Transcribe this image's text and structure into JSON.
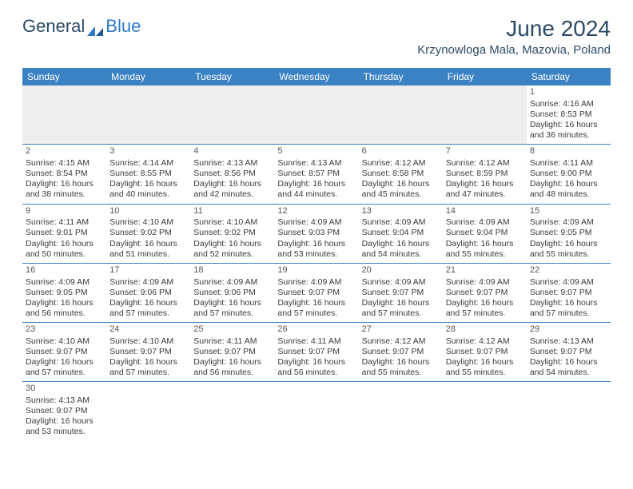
{
  "brand": {
    "part1": "General",
    "part2": "Blue"
  },
  "title": "June 2024",
  "location": "Krzynowloga Mala, Mazovia, Poland",
  "colors": {
    "header_bg": "#3b82c4",
    "header_text": "#ffffff",
    "cell_border": "#3b82c4",
    "brand_dark": "#2b4a66",
    "brand_blue": "#2f7ac4",
    "empty_bg": "#eeeeee"
  },
  "day_headers": [
    "Sunday",
    "Monday",
    "Tuesday",
    "Wednesday",
    "Thursday",
    "Friday",
    "Saturday"
  ],
  "weeks": [
    [
      null,
      null,
      null,
      null,
      null,
      null,
      {
        "n": "1",
        "sr": "4:16 AM",
        "ss": "8:53 PM",
        "dl": "16 hours and 36 minutes."
      }
    ],
    [
      {
        "n": "2",
        "sr": "4:15 AM",
        "ss": "8:54 PM",
        "dl": "16 hours and 38 minutes."
      },
      {
        "n": "3",
        "sr": "4:14 AM",
        "ss": "8:55 PM",
        "dl": "16 hours and 40 minutes."
      },
      {
        "n": "4",
        "sr": "4:13 AM",
        "ss": "8:56 PM",
        "dl": "16 hours and 42 minutes."
      },
      {
        "n": "5",
        "sr": "4:13 AM",
        "ss": "8:57 PM",
        "dl": "16 hours and 44 minutes."
      },
      {
        "n": "6",
        "sr": "4:12 AM",
        "ss": "8:58 PM",
        "dl": "16 hours and 45 minutes."
      },
      {
        "n": "7",
        "sr": "4:12 AM",
        "ss": "8:59 PM",
        "dl": "16 hours and 47 minutes."
      },
      {
        "n": "8",
        "sr": "4:11 AM",
        "ss": "9:00 PM",
        "dl": "16 hours and 48 minutes."
      }
    ],
    [
      {
        "n": "9",
        "sr": "4:11 AM",
        "ss": "9:01 PM",
        "dl": "16 hours and 50 minutes."
      },
      {
        "n": "10",
        "sr": "4:10 AM",
        "ss": "9:02 PM",
        "dl": "16 hours and 51 minutes."
      },
      {
        "n": "11",
        "sr": "4:10 AM",
        "ss": "9:02 PM",
        "dl": "16 hours and 52 minutes."
      },
      {
        "n": "12",
        "sr": "4:09 AM",
        "ss": "9:03 PM",
        "dl": "16 hours and 53 minutes."
      },
      {
        "n": "13",
        "sr": "4:09 AM",
        "ss": "9:04 PM",
        "dl": "16 hours and 54 minutes."
      },
      {
        "n": "14",
        "sr": "4:09 AM",
        "ss": "9:04 PM",
        "dl": "16 hours and 55 minutes."
      },
      {
        "n": "15",
        "sr": "4:09 AM",
        "ss": "9:05 PM",
        "dl": "16 hours and 55 minutes."
      }
    ],
    [
      {
        "n": "16",
        "sr": "4:09 AM",
        "ss": "9:05 PM",
        "dl": "16 hours and 56 minutes."
      },
      {
        "n": "17",
        "sr": "4:09 AM",
        "ss": "9:06 PM",
        "dl": "16 hours and 57 minutes."
      },
      {
        "n": "18",
        "sr": "4:09 AM",
        "ss": "9:06 PM",
        "dl": "16 hours and 57 minutes."
      },
      {
        "n": "19",
        "sr": "4:09 AM",
        "ss": "9:07 PM",
        "dl": "16 hours and 57 minutes."
      },
      {
        "n": "20",
        "sr": "4:09 AM",
        "ss": "9:07 PM",
        "dl": "16 hours and 57 minutes."
      },
      {
        "n": "21",
        "sr": "4:09 AM",
        "ss": "9:07 PM",
        "dl": "16 hours and 57 minutes."
      },
      {
        "n": "22",
        "sr": "4:09 AM",
        "ss": "9:07 PM",
        "dl": "16 hours and 57 minutes."
      }
    ],
    [
      {
        "n": "23",
        "sr": "4:10 AM",
        "ss": "9:07 PM",
        "dl": "16 hours and 57 minutes."
      },
      {
        "n": "24",
        "sr": "4:10 AM",
        "ss": "9:07 PM",
        "dl": "16 hours and 57 minutes."
      },
      {
        "n": "25",
        "sr": "4:11 AM",
        "ss": "9:07 PM",
        "dl": "16 hours and 56 minutes."
      },
      {
        "n": "26",
        "sr": "4:11 AM",
        "ss": "9:07 PM",
        "dl": "16 hours and 56 minutes."
      },
      {
        "n": "27",
        "sr": "4:12 AM",
        "ss": "9:07 PM",
        "dl": "16 hours and 55 minutes."
      },
      {
        "n": "28",
        "sr": "4:12 AM",
        "ss": "9:07 PM",
        "dl": "16 hours and 55 minutes."
      },
      {
        "n": "29",
        "sr": "4:13 AM",
        "ss": "9:07 PM",
        "dl": "16 hours and 54 minutes."
      }
    ],
    [
      {
        "n": "30",
        "sr": "4:13 AM",
        "ss": "9:07 PM",
        "dl": "16 hours and 53 minutes."
      },
      null,
      null,
      null,
      null,
      null,
      null
    ]
  ],
  "labels": {
    "sunrise": "Sunrise:",
    "sunset": "Sunset:",
    "daylight": "Daylight:"
  }
}
